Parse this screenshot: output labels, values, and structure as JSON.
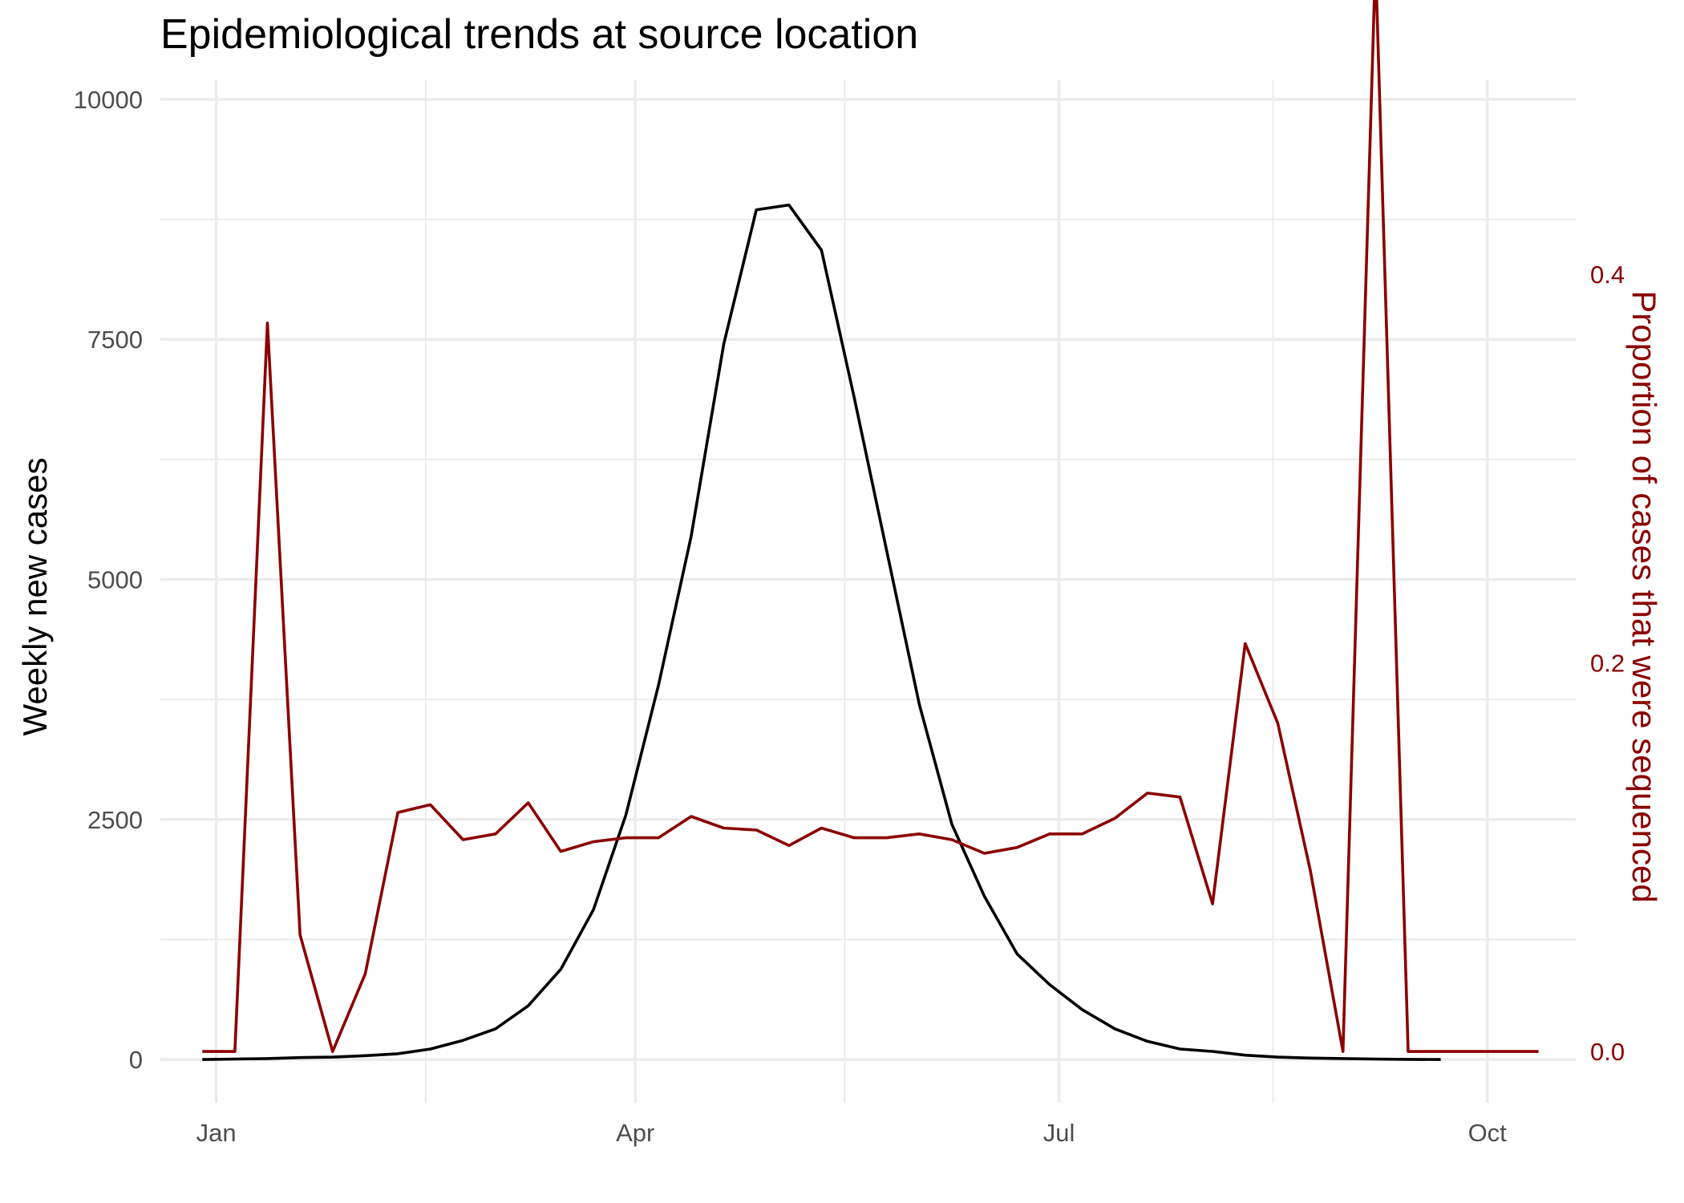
{
  "chart_data": {
    "type": "line",
    "title": "Epidemiological trends at source location",
    "ylabel": "Weekly new cases",
    "y2label": "Proportion of cases that were sequenced",
    "ylim": [
      -450,
      10200
    ],
    "y2lim": [
      -0.0264,
      0.5
    ],
    "yticks": [
      {
        "value": 0,
        "label": "0"
      },
      {
        "value": 2500,
        "label": "2500"
      },
      {
        "value": 5000,
        "label": "5000"
      },
      {
        "value": 7500,
        "label": "7500"
      },
      {
        "value": 10000,
        "label": "10000"
      }
    ],
    "y2ticks": [
      {
        "value": 0.0,
        "label": "0.0"
      },
      {
        "value": 0.2,
        "label": "0.2"
      },
      {
        "value": 0.4,
        "label": "0.4"
      }
    ],
    "xlim": [
      "2020-12-20",
      "2021-10-20"
    ],
    "xticks": [
      {
        "date": "2021-01-01",
        "label": "Jan"
      },
      {
        "date": "2021-04-01",
        "label": "Apr"
      },
      {
        "date": "2021-07-01",
        "label": "Jul"
      },
      {
        "date": "2021-10-01",
        "label": "Oct"
      }
    ],
    "xminor": [
      "2021-02-15",
      "2021-05-16",
      "2021-08-16"
    ],
    "grid": true,
    "colors": {
      "cases": "#000000",
      "proportion": "#8b0000",
      "grid": "#ebebeb",
      "left_ticks": "#4d4d4d",
      "right_axis": "#8b0000"
    },
    "series": [
      {
        "axis": "left",
        "x": [
          "2020-12-29",
          "2021-01-05",
          "2021-01-12",
          "2021-01-19",
          "2021-01-26",
          "2021-02-02",
          "2021-02-09",
          "2021-02-16",
          "2021-02-23",
          "2021-03-02",
          "2021-03-09",
          "2021-03-16",
          "2021-03-23",
          "2021-03-30",
          "2021-04-06",
          "2021-04-13",
          "2021-04-20",
          "2021-04-27",
          "2021-05-04",
          "2021-05-11",
          "2021-05-18",
          "2021-05-25",
          "2021-06-01",
          "2021-06-08",
          "2021-06-15",
          "2021-06-22",
          "2021-06-29",
          "2021-07-06",
          "2021-07-13",
          "2021-07-20",
          "2021-07-27",
          "2021-08-03",
          "2021-08-10",
          "2021-08-17",
          "2021-08-24",
          "2021-08-31",
          "2021-09-07",
          "2021-09-14",
          "2021-09-21"
        ],
        "values": [
          0,
          5,
          10,
          20,
          25,
          40,
          60,
          110,
          200,
          320,
          560,
          940,
          1560,
          2550,
          3900,
          5450,
          7450,
          8850,
          8900,
          8430,
          6900,
          5300,
          3700,
          2450,
          1700,
          1100,
          780,
          520,
          320,
          190,
          110,
          85,
          45,
          25,
          15,
          10,
          5,
          2,
          0
        ]
      },
      {
        "axis": "right",
        "x": [
          "2020-12-29",
          "2021-01-05",
          "2021-01-12",
          "2021-01-19",
          "2021-01-26",
          "2021-02-02",
          "2021-02-09",
          "2021-02-16",
          "2021-02-23",
          "2021-03-02",
          "2021-03-09",
          "2021-03-16",
          "2021-03-23",
          "2021-03-30",
          "2021-04-06",
          "2021-04-13",
          "2021-04-20",
          "2021-04-27",
          "2021-05-04",
          "2021-05-11",
          "2021-05-18",
          "2021-05-25",
          "2021-06-01",
          "2021-06-08",
          "2021-06-15",
          "2021-06-22",
          "2021-06-29",
          "2021-07-06",
          "2021-07-13",
          "2021-07-20",
          "2021-07-27",
          "2021-08-03",
          "2021-08-10",
          "2021-08-17",
          "2021-08-24",
          "2021-08-31",
          "2021-09-07",
          "2021-09-14",
          "2021-09-21",
          "2021-09-28",
          "2021-10-05",
          "2021-10-12"
        ],
        "values": [
          0,
          0,
          0.375,
          0.06,
          0,
          0.04,
          0.123,
          0.127,
          0.109,
          0.112,
          0.128,
          0.103,
          0.108,
          0.11,
          0.11,
          0.121,
          0.115,
          0.114,
          0.106,
          0.115,
          0.11,
          0.11,
          0.112,
          0.109,
          0.102,
          0.105,
          0.112,
          0.112,
          0.12,
          0.133,
          0.131,
          0.076,
          0.21,
          0.169,
          0.093,
          0,
          0.562,
          0,
          0,
          0,
          0,
          0
        ]
      }
    ]
  }
}
